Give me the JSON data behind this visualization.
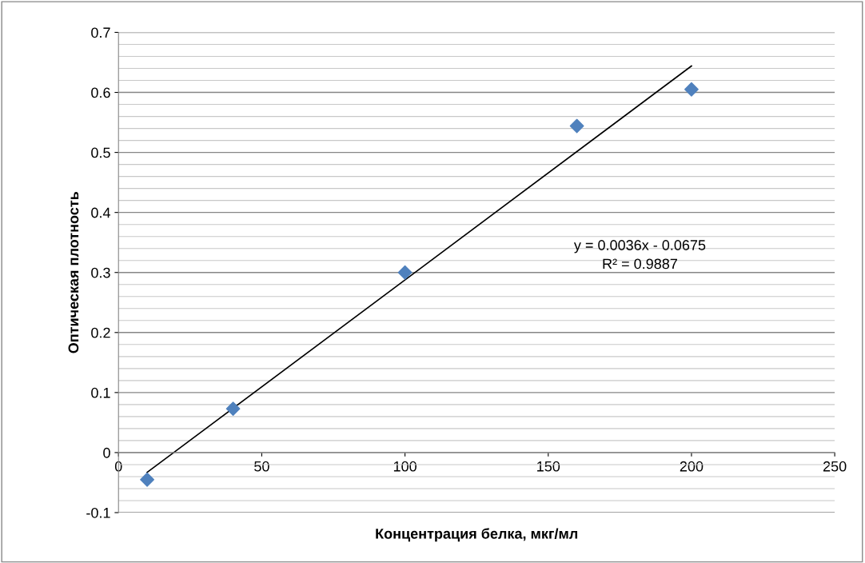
{
  "chart_data": {
    "type": "scatter",
    "xlabel": "Концентрация белка, мкг/мл",
    "ylabel": "Оптическая плотность",
    "x": [
      10,
      40,
      100,
      160,
      200
    ],
    "series": [
      {
        "color": "#4f81bd",
        "marker": "diamond",
        "values": [
          -0.045,
          0.073,
          0.3,
          0.544,
          0.605
        ]
      },
      {
        "type": "line",
        "color": "#000000",
        "marker": "none",
        "x": [
          10,
          200
        ],
        "values": [
          -0.033,
          0.644
        ]
      }
    ],
    "annotations": [
      "y = 0.0036x - 0.0675\nR² = 0.9887"
    ],
    "xlim": [
      0,
      250
    ],
    "xticks": [
      0,
      50,
      100,
      150,
      200,
      250
    ],
    "ylim": [
      -0.1,
      0.7
    ],
    "yticks": [
      -0.1,
      0,
      0.1,
      0.2,
      0.3,
      0.4,
      0.5,
      0.6,
      0.7
    ],
    "grid": "y",
    "legend": false
  }
}
